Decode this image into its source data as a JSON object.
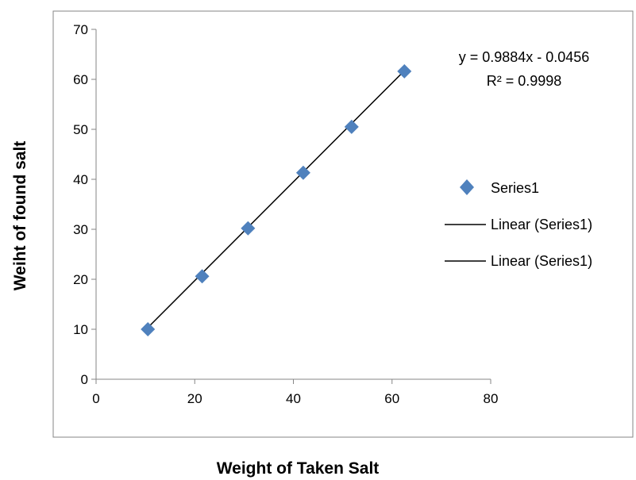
{
  "chart_data": {
    "type": "scatter",
    "title": "",
    "xlabel": "Weight of Taken Salt",
    "ylabel": "Weiht of found salt",
    "xlim": [
      0,
      80
    ],
    "ylim": [
      0,
      70
    ],
    "x_ticks": [
      "0",
      "20",
      "40",
      "60",
      "80"
    ],
    "y_ticks": [
      "0",
      "10",
      "20",
      "30",
      "40",
      "50",
      "60",
      "70"
    ],
    "grid": false,
    "series": [
      {
        "name": "Series1",
        "marker": "diamond",
        "color": "#4F81BD",
        "points": [
          {
            "x": 10.5,
            "y": 10.0
          },
          {
            "x": 21.5,
            "y": 20.6
          },
          {
            "x": 30.8,
            "y": 30.2
          },
          {
            "x": 42.0,
            "y": 41.3
          },
          {
            "x": 51.8,
            "y": 50.5
          },
          {
            "x": 62.5,
            "y": 61.6
          }
        ]
      }
    ],
    "trendline": {
      "kind": "linear",
      "slope": 0.9884,
      "intercept": -0.0456,
      "x_range": [
        10.5,
        62.5
      ],
      "color": "#000000"
    },
    "annotations": {
      "equation": "y = 0.9884x - 0.0456",
      "r_squared": "R² = 0.9998"
    },
    "legend": {
      "placement": "right",
      "entries": [
        {
          "label": "Series1",
          "symbol": "diamond"
        },
        {
          "label": "Linear (Series1)",
          "symbol": "line"
        },
        {
          "label": "Linear (Series1)",
          "symbol": "line"
        }
      ]
    }
  }
}
